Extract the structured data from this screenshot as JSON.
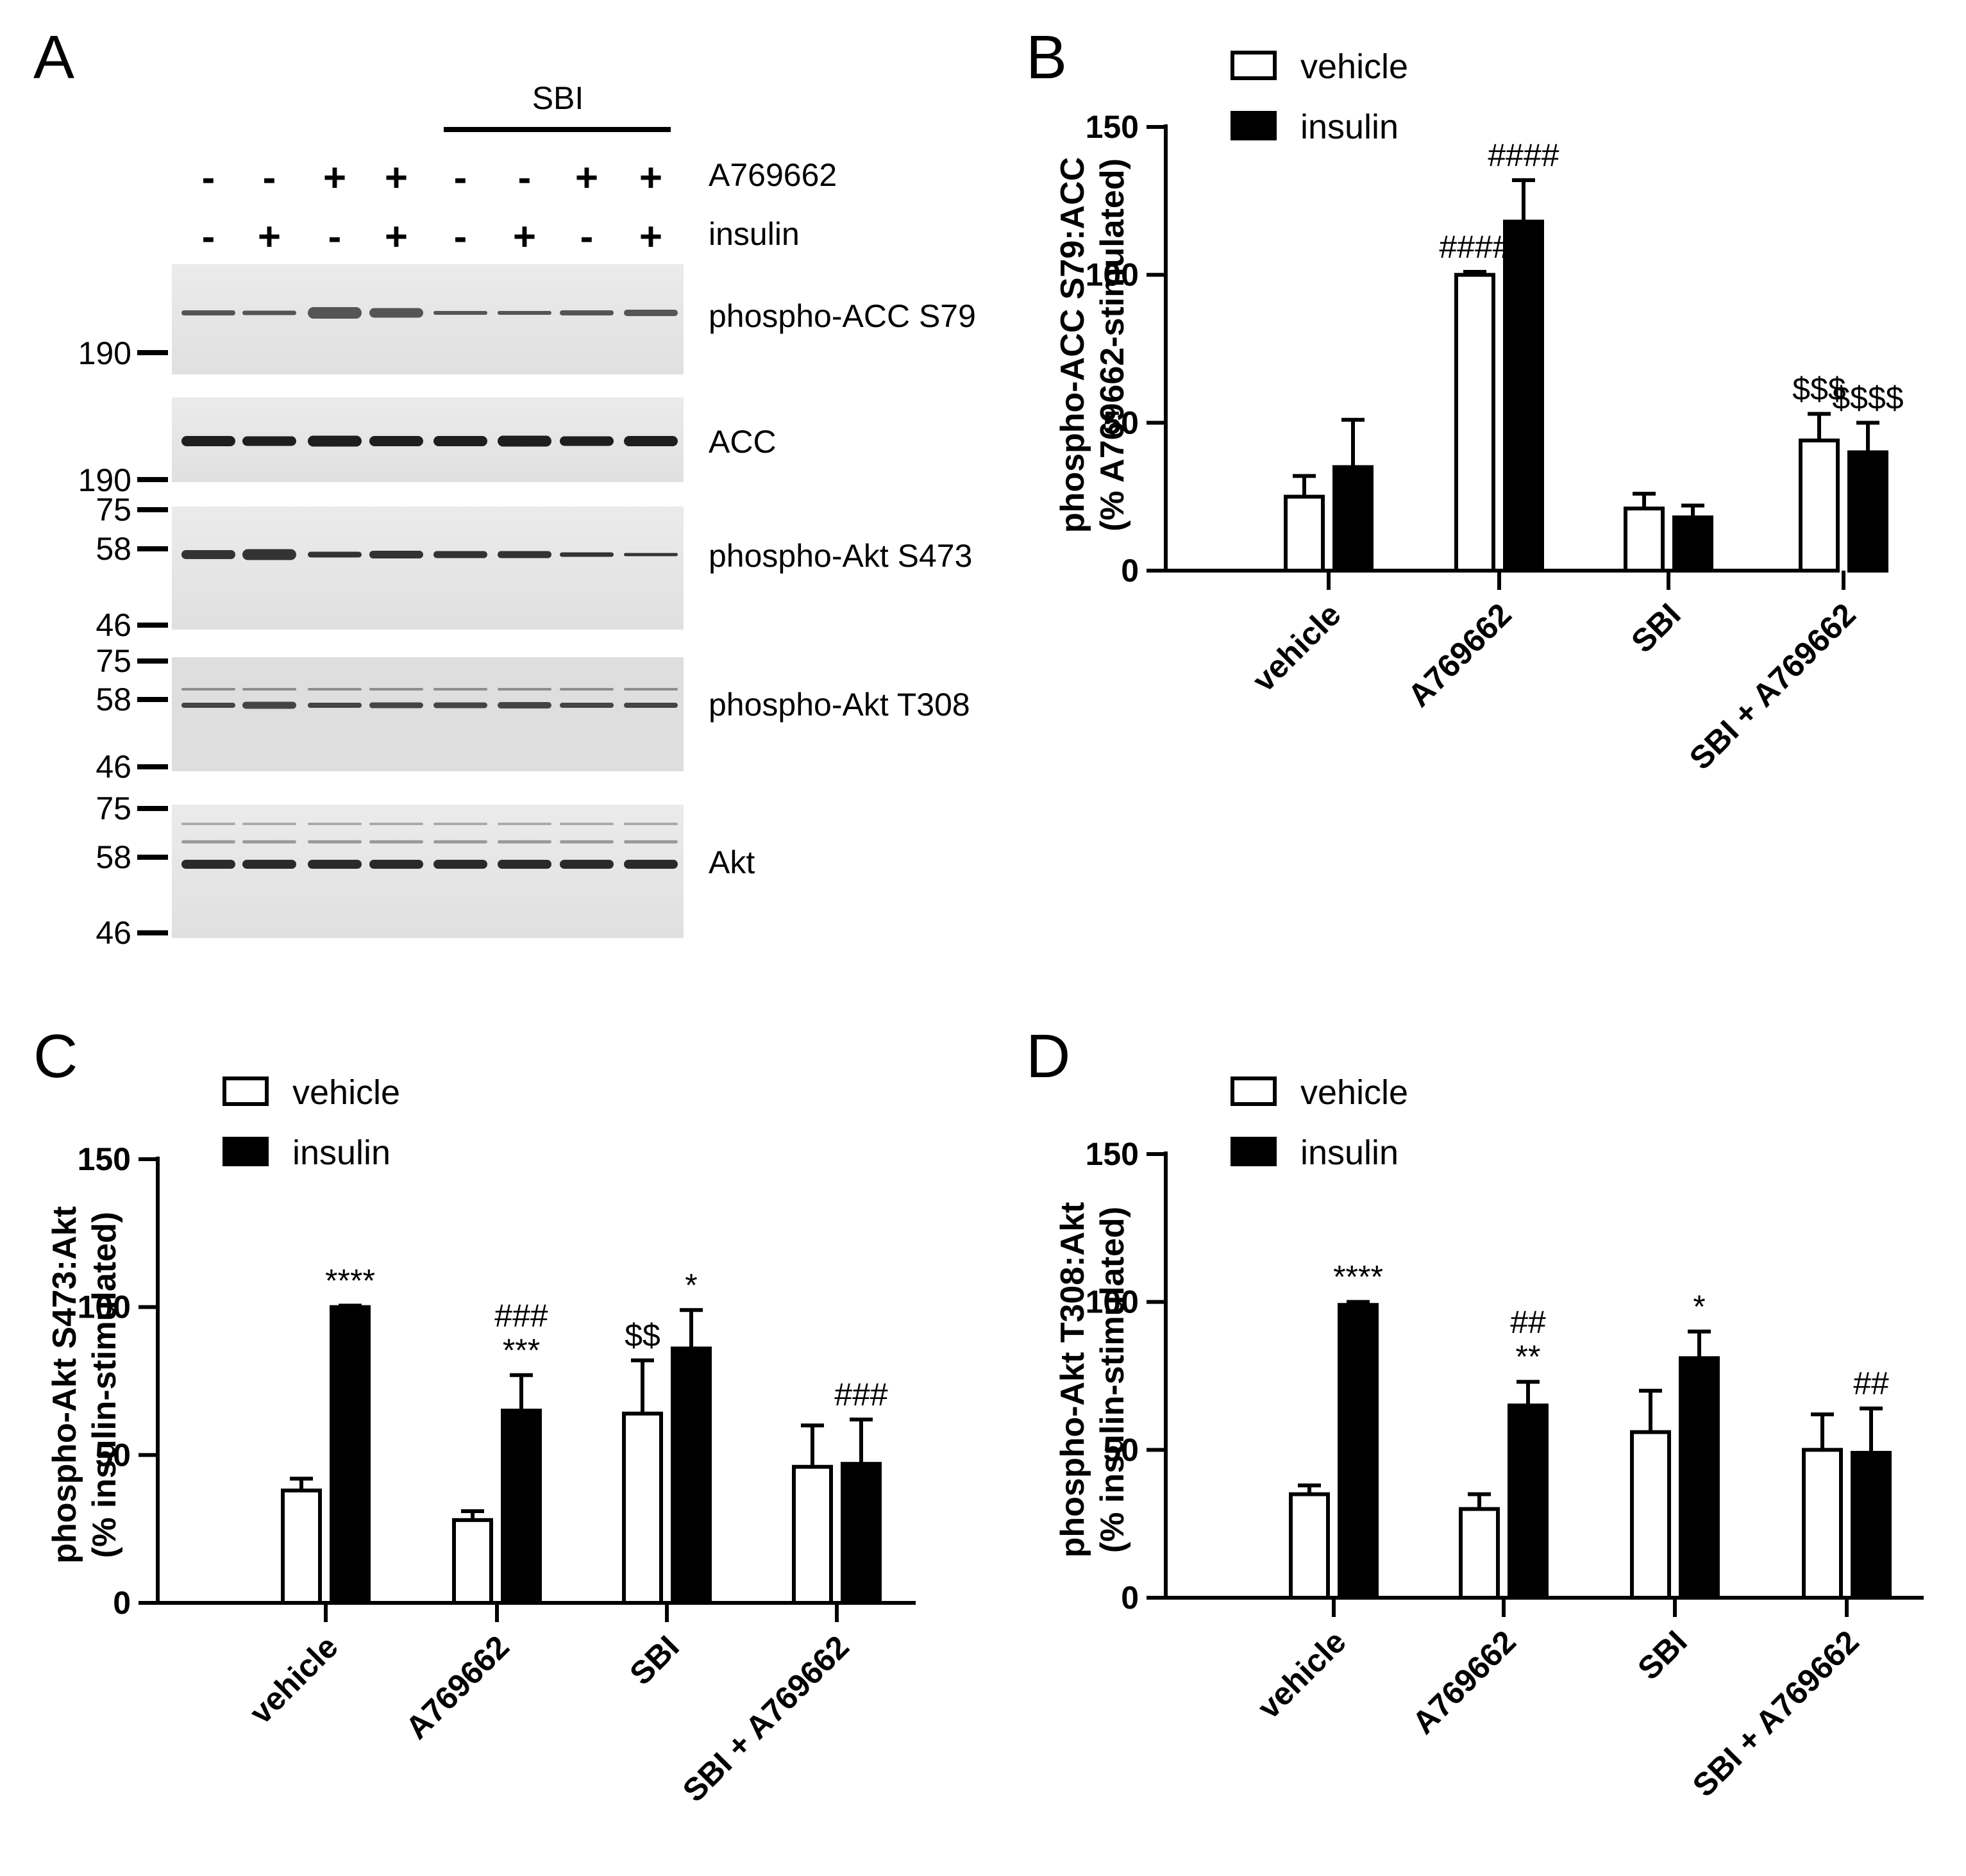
{
  "panels": {
    "A": "A",
    "B": "B",
    "C": "C",
    "D": "D"
  },
  "blot": {
    "group_label": "SBI",
    "rows": [
      {
        "name": "A769662",
        "signs": [
          "-",
          "-",
          "+",
          "+",
          "-",
          "-",
          "+",
          "+"
        ]
      },
      {
        "name": "insulin",
        "signs": [
          "-",
          "+",
          "-",
          "+",
          "-",
          "+",
          "-",
          "+"
        ]
      }
    ],
    "bands": [
      {
        "label": "phospho-ACC S79",
        "markers": [
          "190"
        ]
      },
      {
        "label": "ACC",
        "markers": [
          "190"
        ]
      },
      {
        "label": "phospho-Akt S473",
        "markers": [
          "75",
          "58",
          "46"
        ]
      },
      {
        "label": "phospho-Akt T308",
        "markers": [
          "75",
          "58",
          "46"
        ]
      },
      {
        "label": "Akt",
        "markers": [
          "75",
          "58",
          "46"
        ]
      }
    ]
  },
  "chart_data": [
    {
      "type": "bar",
      "panel": "B",
      "ylabel": "phospho-ACC S79:ACC",
      "ylabel2": "(% A769662-stimulated)",
      "categories": [
        "vehicle",
        "A769662",
        "SBI",
        "SBI + A769662"
      ],
      "ylim": [
        0,
        150
      ],
      "yticks": [
        "0",
        "50",
        "100",
        "150"
      ],
      "legend": [
        "vehicle",
        "insulin"
      ],
      "legend_position": "top-left",
      "series": [
        {
          "name": "vehicle",
          "values": [
            25,
            100,
            21,
            44
          ],
          "errors": [
            7,
            1,
            5,
            9
          ],
          "annotations": [
            "",
            "####",
            "",
            "$$$"
          ]
        },
        {
          "name": "insulin",
          "values": [
            35,
            118,
            18,
            40
          ],
          "errors": [
            16,
            14,
            4,
            10
          ],
          "annotations": [
            "",
            "####",
            "",
            "$$$$"
          ]
        }
      ]
    },
    {
      "type": "bar",
      "panel": "C",
      "ylabel": "phospho-Akt S473:Akt",
      "ylabel2": "(% insulin-stimulated)",
      "categories": [
        "vehicle",
        "A769662",
        "SBI",
        "SBI + A769662"
      ],
      "ylim": [
        0,
        150
      ],
      "yticks": [
        "0",
        "50",
        "100",
        "150"
      ],
      "legend": [
        "vehicle",
        "insulin"
      ],
      "legend_position": "top-left",
      "series": [
        {
          "name": "vehicle",
          "values": [
            38,
            28,
            64,
            46
          ],
          "errors": [
            4,
            3,
            18,
            14
          ],
          "annotations": [
            "",
            "",
            "$$",
            ""
          ]
        },
        {
          "name": "insulin",
          "values": [
            100,
            65,
            86,
            47
          ],
          "errors": [
            0.5,
            12,
            13,
            15
          ],
          "annotations": [
            "****",
            "###\n***",
            "*",
            "###"
          ]
        }
      ]
    },
    {
      "type": "bar",
      "panel": "D",
      "ylabel": "phospho-Akt T308:Akt",
      "ylabel2": "(% insulin-stimulated)",
      "categories": [
        "vehicle",
        "A769662",
        "SBI",
        "SBI + A769662"
      ],
      "ylim": [
        0,
        150
      ],
      "yticks": [
        "0",
        "50",
        "100",
        "150"
      ],
      "legend": [
        "vehicle",
        "insulin"
      ],
      "legend_position": "top-left",
      "series": [
        {
          "name": "vehicle",
          "values": [
            35,
            30,
            56,
            50
          ],
          "errors": [
            3,
            5,
            14,
            12
          ],
          "annotations": [
            "",
            "",
            "",
            ""
          ]
        },
        {
          "name": "insulin",
          "values": [
            99,
            65,
            81,
            49
          ],
          "errors": [
            1,
            8,
            9,
            15
          ],
          "annotations": [
            "****",
            "##\n**",
            "*",
            "##"
          ]
        }
      ]
    }
  ]
}
